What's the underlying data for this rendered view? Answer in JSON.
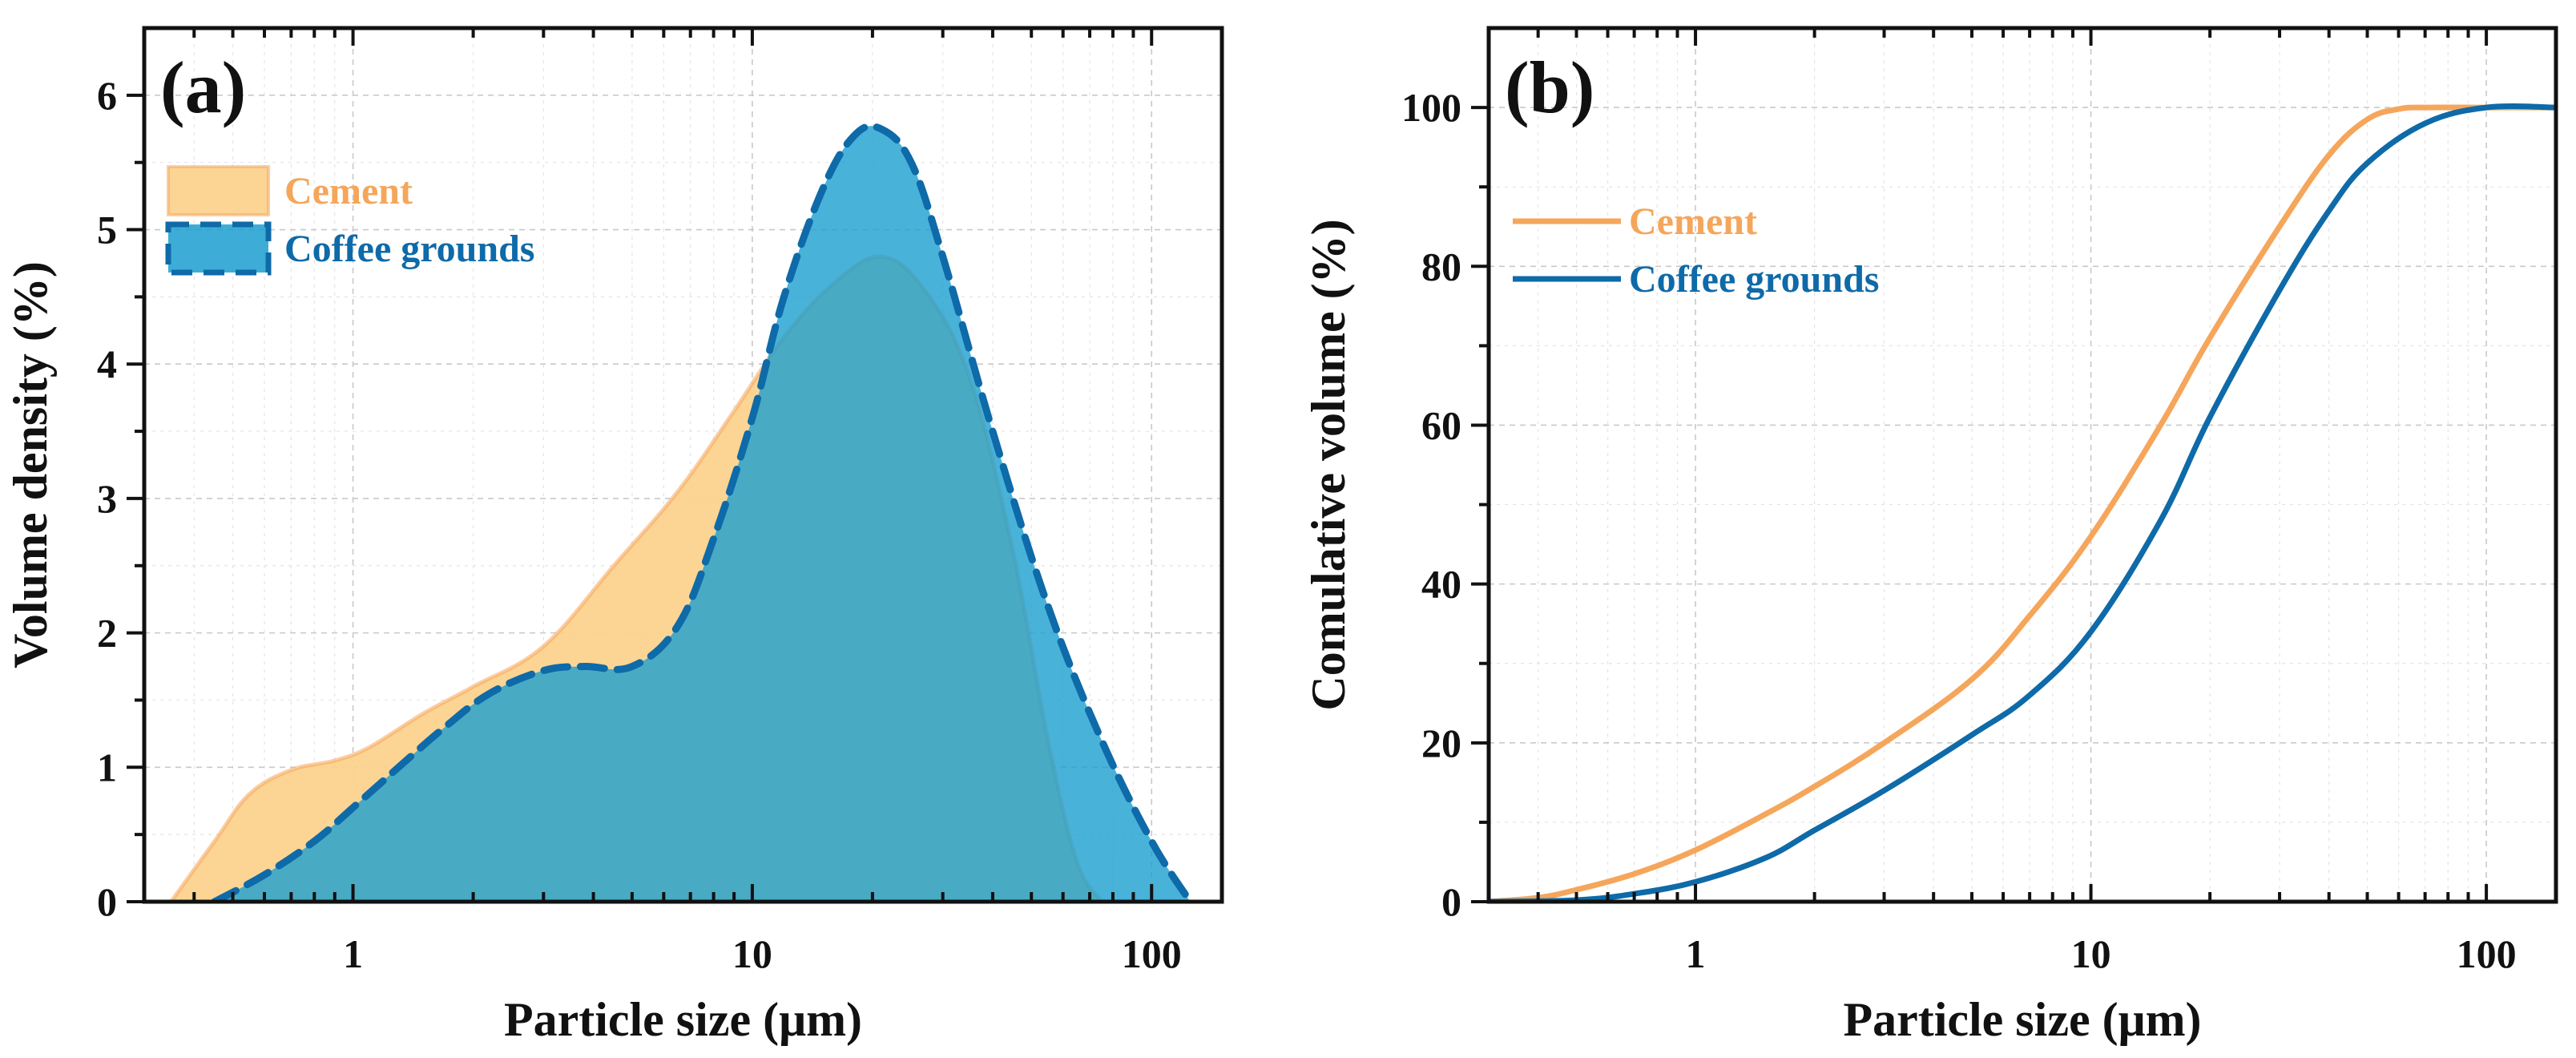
{
  "chart_data": [
    {
      "panel": "(a)",
      "type": "area",
      "xscale": "log",
      "xlim": [
        0.3,
        150
      ],
      "ylim": [
        0,
        6.5
      ],
      "xticks": [
        "1",
        "10",
        "100"
      ],
      "yticks": [
        "0",
        "1",
        "2",
        "3",
        "4",
        "5",
        "6"
      ],
      "xlabel": "Particle size (μm)",
      "ylabel": "Volume density (%)",
      "legend_position": "top-left",
      "series": [
        {
          "name": "Cement",
          "color": "#F5A65B",
          "fill": "#FCD38F",
          "x": [
            0.35,
            0.45,
            0.55,
            0.7,
            0.9,
            1.1,
            1.5,
            2.0,
            3.0,
            4.5,
            6.5,
            9.0,
            12.0,
            16.0,
            21.0,
            27.0,
            35.0,
            45.0,
            55.0,
            65.0,
            75.0
          ],
          "values": [
            0.0,
            0.45,
            0.8,
            0.98,
            1.05,
            1.15,
            1.4,
            1.6,
            1.9,
            2.5,
            3.05,
            3.65,
            4.2,
            4.6,
            4.8,
            4.55,
            3.9,
            2.6,
            1.2,
            0.3,
            0.0
          ]
        },
        {
          "name": "Coffee grounds",
          "color": "#0E6AA8",
          "fill": "#1B9FD0",
          "x": [
            0.45,
            0.6,
            0.8,
            1.0,
            1.3,
            1.7,
            2.2,
            3.0,
            3.8,
            5.0,
            6.5,
            8.0,
            10.0,
            12.0,
            15.0,
            18.0,
            21.0,
            25.0,
            30.0,
            40.0,
            55.0,
            75.0,
            100.0,
            125.0
          ],
          "values": [
            0.0,
            0.2,
            0.45,
            0.7,
            1.0,
            1.3,
            1.55,
            1.72,
            1.75,
            1.75,
            2.05,
            2.7,
            3.6,
            4.5,
            5.3,
            5.7,
            5.75,
            5.5,
            4.8,
            3.5,
            2.2,
            1.2,
            0.45,
            0.0
          ]
        }
      ]
    },
    {
      "panel": "(b)",
      "type": "line",
      "xscale": "log",
      "xlim": [
        0.3,
        150
      ],
      "ylim": [
        0,
        110
      ],
      "xticks": [
        "1",
        "10",
        "100"
      ],
      "yticks": [
        "0",
        "20",
        "40",
        "60",
        "80",
        "100"
      ],
      "xlabel": "Particle size (μm)",
      "ylabel": "Comulative volume (%)",
      "legend_position": "top-left",
      "series": [
        {
          "name": "Cement",
          "color": "#F5A65B",
          "x": [
            0.3,
            0.4,
            0.5,
            0.7,
            1.0,
            1.5,
            2.0,
            3.0,
            5.0,
            7.0,
            10.0,
            15.0,
            20.0,
            30.0,
            40.0,
            50.0,
            60.0,
            70.0,
            100.0,
            150.0
          ],
          "values": [
            0.0,
            0.5,
            1.5,
            3.5,
            6.5,
            11.0,
            14.5,
            20.0,
            28.0,
            36.0,
            46.0,
            60.0,
            71.0,
            85.0,
            94.0,
            98.5,
            99.8,
            100.0,
            100.0,
            100.0
          ]
        },
        {
          "name": "Coffee grounds",
          "color": "#0E6AA8",
          "x": [
            0.3,
            0.5,
            0.7,
            1.0,
            1.5,
            2.0,
            3.0,
            5.0,
            7.0,
            10.0,
            15.0,
            20.0,
            30.0,
            40.0,
            50.0,
            70.0,
            100.0,
            150.0
          ],
          "values": [
            0.0,
            0.2,
            1.0,
            2.5,
            5.5,
            9.0,
            14.0,
            21.0,
            26.0,
            34.0,
            48.0,
            61.0,
            77.0,
            87.0,
            93.0,
            98.0,
            100.0,
            100.0
          ]
        }
      ]
    }
  ]
}
